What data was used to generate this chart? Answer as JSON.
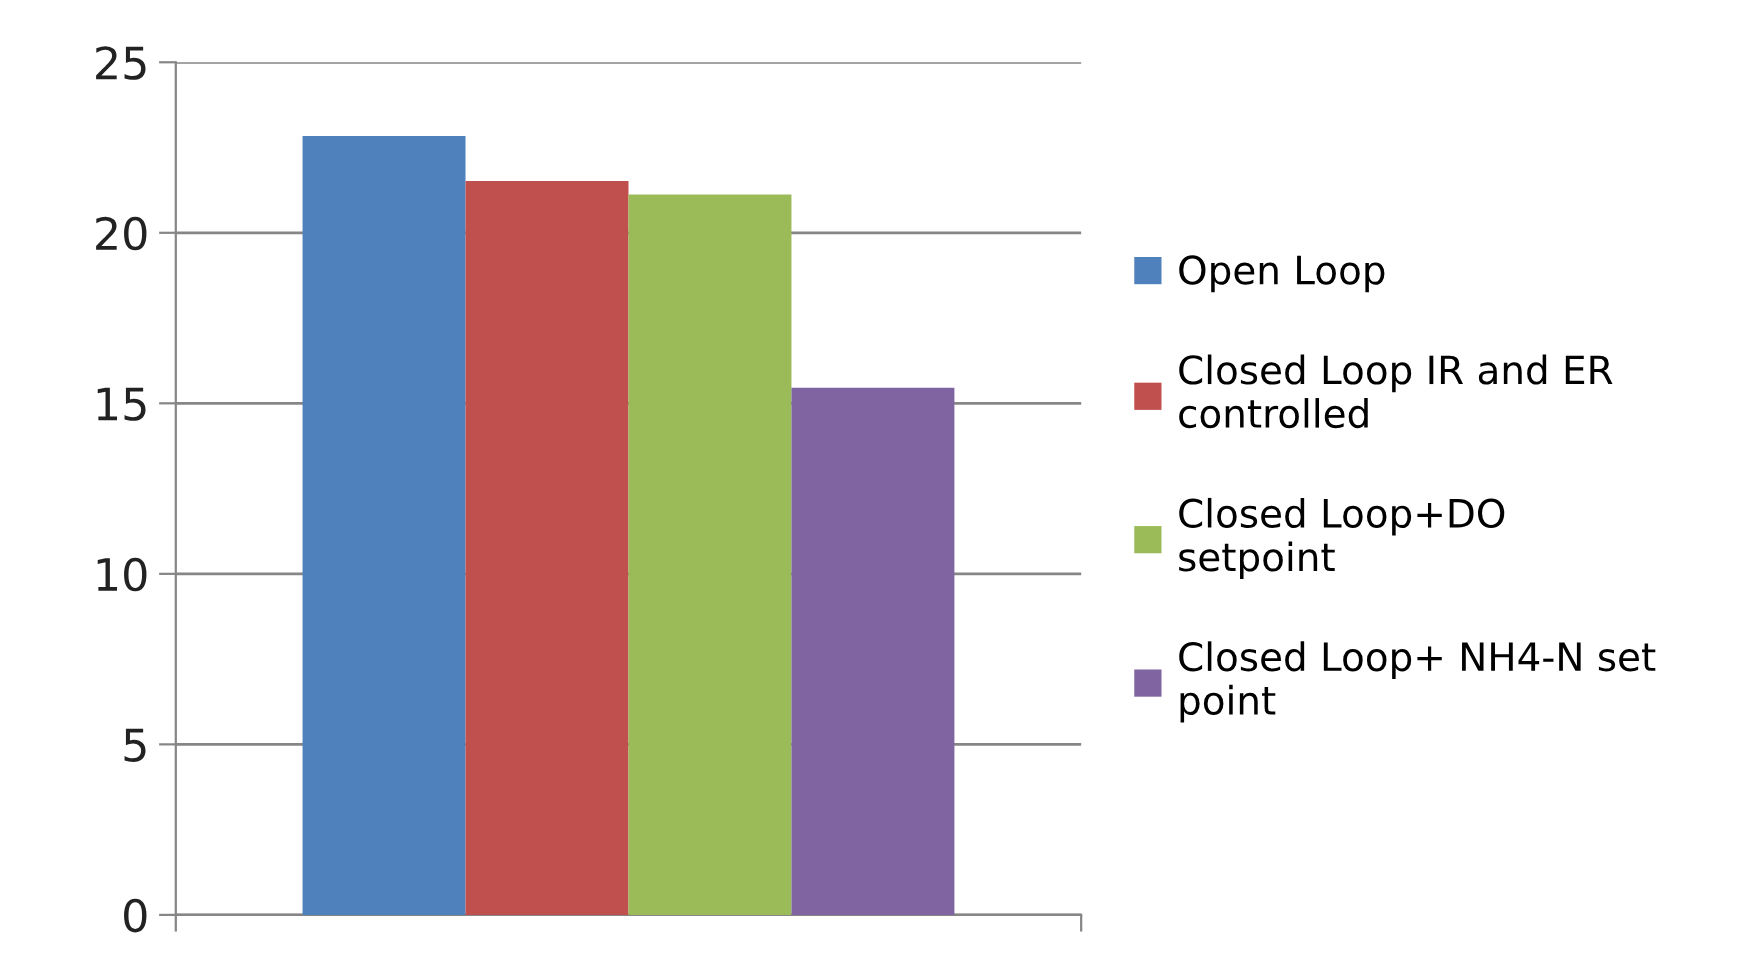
{
  "chart_data": {
    "type": "bar",
    "categories": [
      null
    ],
    "series": [
      {
        "name": "Open Loop",
        "color": "#4f81bd",
        "values": [
          22.84
        ]
      },
      {
        "name": "Closed Loop IR and ER controlled",
        "color": "#c0504d",
        "values": [
          21.52
        ]
      },
      {
        "name": "Closed Loop+DO setpoint",
        "color": "#9bbb59",
        "values": [
          21.12
        ]
      },
      {
        "name": "Closed Loop+ NH4-N set point",
        "color": "#8064a2",
        "values": [
          15.46
        ]
      }
    ],
    "ylim": [
      0,
      25
    ],
    "yticks": [
      0,
      5,
      10,
      15,
      20,
      25
    ],
    "grid": "y",
    "legend": "right"
  }
}
